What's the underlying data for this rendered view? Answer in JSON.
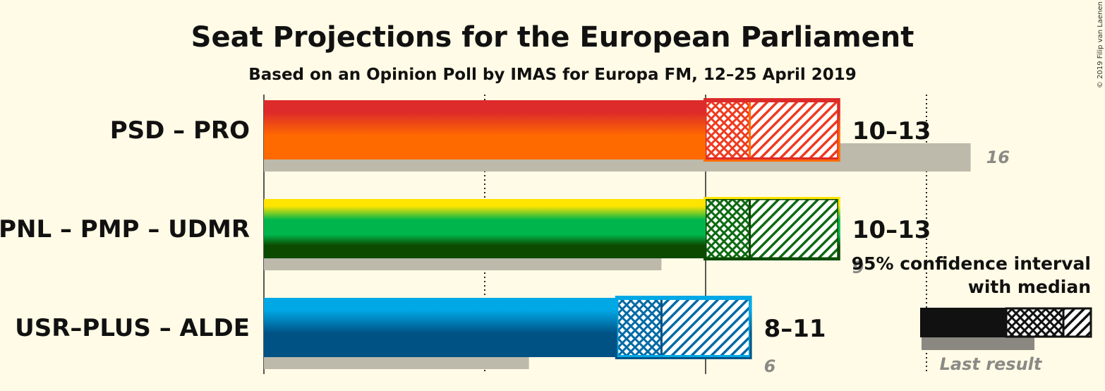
{
  "title": "Seat Projections for the European Parliament",
  "subtitle": "Based on an Opinion Poll by IMAS for Europa FM, 12–25 April 2019",
  "copyright": "© 2019 Filip van Laenen",
  "legend": {
    "ci_label_line1": "95% confidence interval",
    "ci_label_line2": "with median",
    "last_result_label": "Last result"
  },
  "chart_data": {
    "type": "bar",
    "title": "Seat Projections for the European Parliament",
    "subtitle": "Based on an Opinion Poll by IMAS for Europa FM, 12–25 April 2019",
    "xlim": [
      0,
      16
    ],
    "gridlines": [
      0,
      5,
      10,
      15
    ],
    "series": [
      {
        "name": "PSD – PRO",
        "range_label": "10–13",
        "low": 10,
        "median": 11,
        "high": 13,
        "last_result": 16,
        "last_label": "16",
        "colors": [
          "#dd2a2a",
          "#ff6a00"
        ]
      },
      {
        "name": "PNL – PMP – UDMR",
        "range_label": "10–13",
        "low": 10,
        "median": 11,
        "high": 13,
        "last_result": 9,
        "last_label": "9",
        "colors": [
          "#ffe400",
          "#00b64c",
          "#0c4a00"
        ]
      },
      {
        "name": "USR–PLUS – ALDE",
        "range_label": "8–11",
        "low": 8,
        "median": 9,
        "high": 11,
        "last_result": 6,
        "last_label": "6",
        "colors": [
          "#00a9e6",
          "#005285"
        ]
      }
    ]
  }
}
